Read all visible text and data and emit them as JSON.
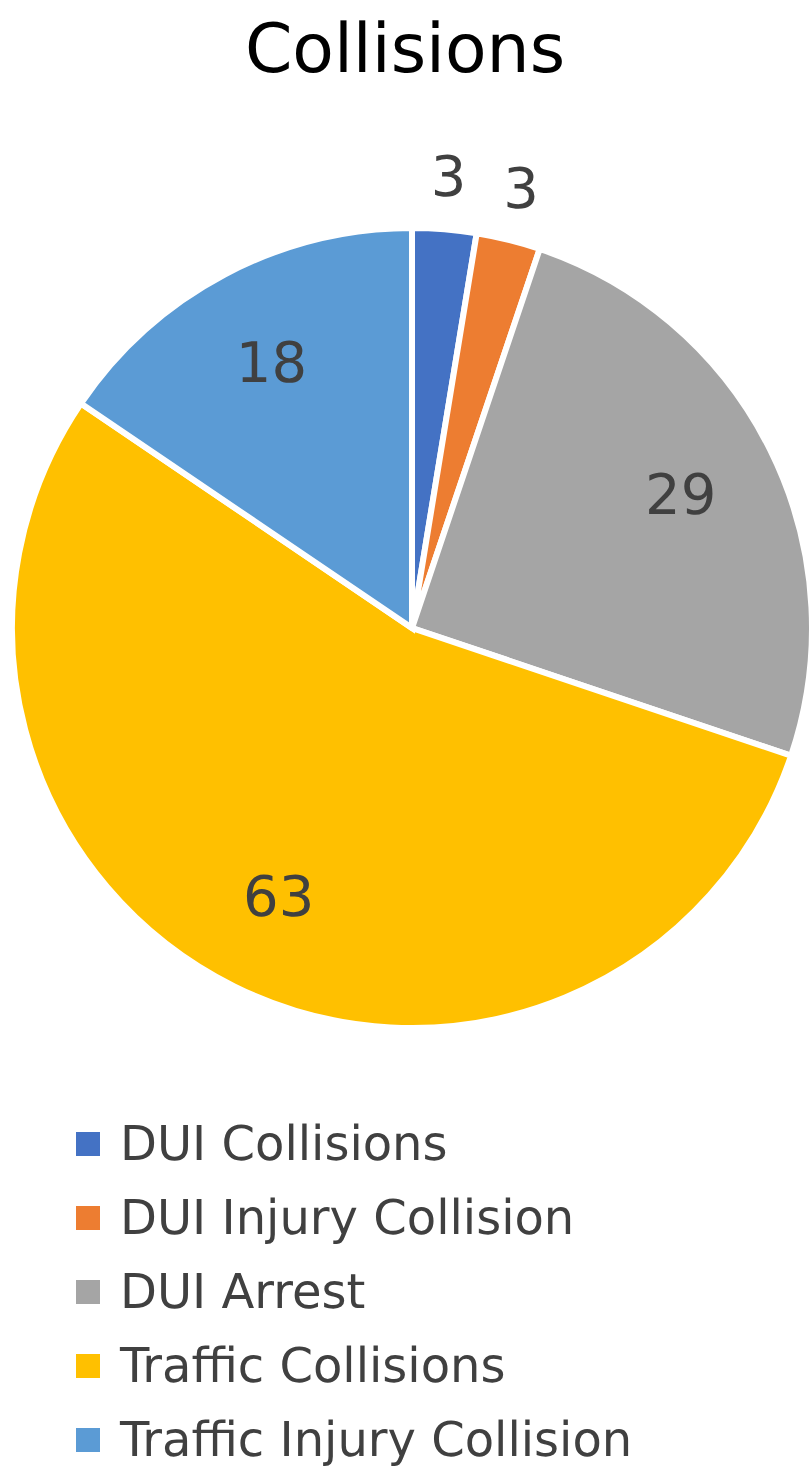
{
  "chart_data": {
    "type": "pie",
    "title": "Collisions",
    "categories": [
      "DUI Collisions",
      "DUI Injury Collision",
      "DUI Arrest",
      "Traffic Collisions",
      "Traffic Injury Collision"
    ],
    "values": [
      3,
      3,
      29,
      63,
      18
    ],
    "colors": [
      "#4472c4",
      "#ed7d31",
      "#a5a5a5",
      "#ffc000",
      "#5b9bd5"
    ],
    "data_labels": true,
    "legend": "bottom"
  }
}
